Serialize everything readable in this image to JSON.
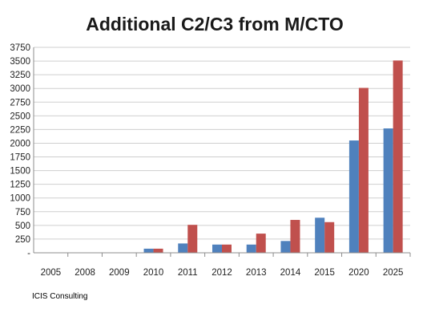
{
  "chart_data": {
    "type": "bar",
    "title": "Additional C2/C3 from M/CTO",
    "categories": [
      "2005",
      "2008",
      "2009",
      "2010",
      "2011",
      "2012",
      "2013",
      "2014",
      "2015",
      "2020",
      "2025"
    ],
    "series": [
      {
        "color": "#4F81BD",
        "values": [
          0,
          0,
          0,
          75,
          170,
          150,
          150,
          215,
          640,
          2050,
          2270
        ]
      },
      {
        "color": "#C0504D",
        "values": [
          0,
          0,
          0,
          75,
          510,
          150,
          350,
          600,
          560,
          3010,
          3510
        ]
      }
    ],
    "ylim": [
      0,
      3750
    ],
    "yticks": [
      "-",
      "250",
      "500",
      "750",
      "1000",
      "1250",
      "1500",
      "1750",
      "2000",
      "2250",
      "2500",
      "2750",
      "3000",
      "3250",
      "3500",
      "3750"
    ],
    "xlabel": "",
    "ylabel": "",
    "grid": true,
    "legend": "none"
  },
  "source": "ICIS Consulting"
}
